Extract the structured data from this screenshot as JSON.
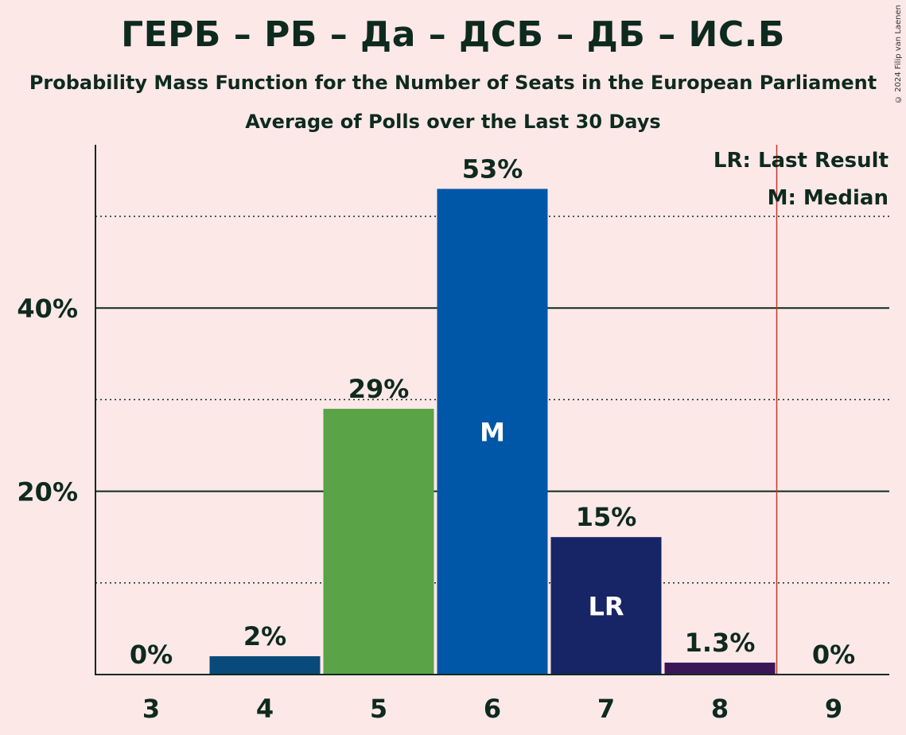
{
  "title": "ГЕРБ – РБ – Да – ДСБ – ДБ – ИС.Б",
  "subtitle": "Probability Mass Function for the Number of Seats in the European Parliament",
  "subtitle2": "Average of Polls over the Last 30 Days",
  "copyright": "© 2024 Filip van Laenen",
  "legend": {
    "last_result": "LR: Last Result",
    "median": "M: Median"
  },
  "colors": {
    "background": "#fde8e8",
    "text": "#0e2a1f",
    "last_result_line": "#c0392b"
  },
  "chart_data": {
    "type": "bar",
    "categories": [
      "3",
      "4",
      "5",
      "6",
      "7",
      "8",
      "9"
    ],
    "values": [
      0,
      2,
      29,
      53,
      15,
      1.3,
      0
    ],
    "labels": [
      "0%",
      "2%",
      "29%",
      "53%",
      "15%",
      "1.3%",
      "0%"
    ],
    "bar_colors": [
      "#0a4a7a",
      "#0a4a7a",
      "#5aa346",
      "#0057a8",
      "#172566",
      "#3a1659",
      "#0a4a7a"
    ],
    "inbar_markers": {
      "6": "M",
      "7": "LR"
    },
    "last_result_after": "8",
    "y_ticks": [
      20,
      40
    ],
    "y_tick_labels": [
      "20%",
      "40%"
    ],
    "ylim": [
      0,
      57.5
    ],
    "minor_gridlines": [
      10,
      30,
      50
    ],
    "grid": true,
    "legend_position": "top-right"
  }
}
